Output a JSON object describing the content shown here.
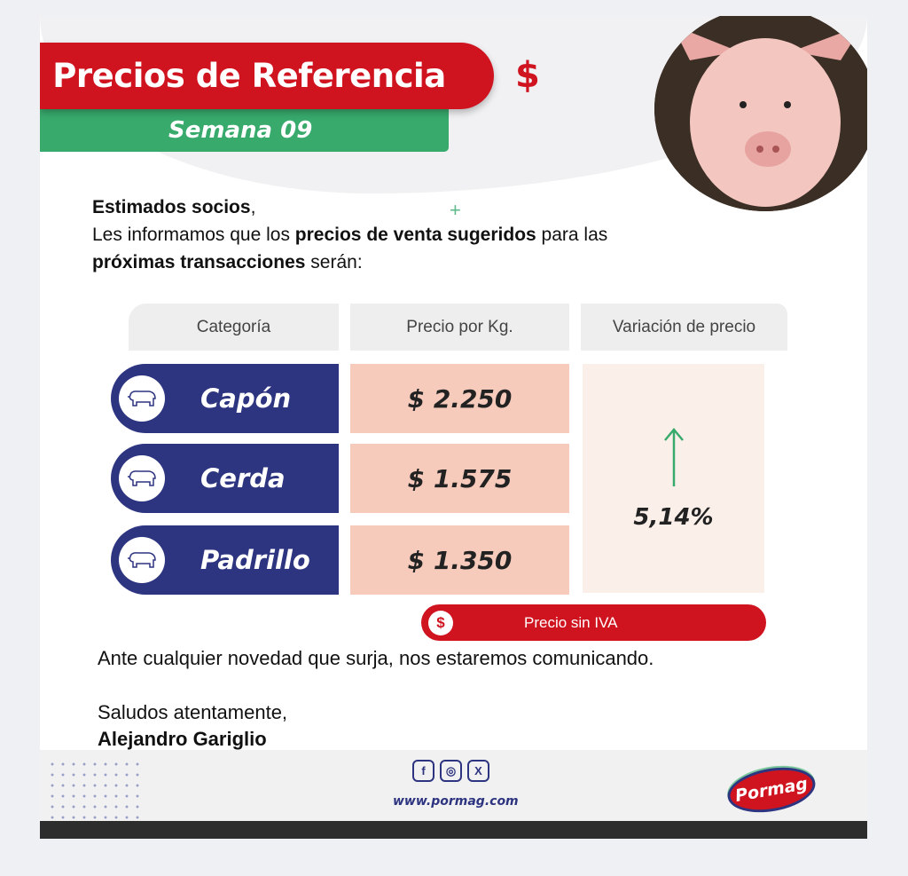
{
  "header": {
    "title": "Precios de Referencia",
    "week": "Semana  09",
    "currency_symbol": "$"
  },
  "intro": {
    "greeting": "Estimados socios",
    "greeting_punct": ",",
    "line2_a": "Les informamos que los ",
    "line2_bold": "precios de venta sugeridos",
    "line2_b": " para las",
    "line3_bold": "próximas transacciones",
    "line3_b": " serán:"
  },
  "table": {
    "headers": [
      "Categoría",
      "Precio por Kg.",
      "Variación de precio"
    ],
    "rows": [
      {
        "category": "Capón",
        "price": "$ 2.250"
      },
      {
        "category": "Cerda",
        "price": "$ 1.575"
      },
      {
        "category": "Padrillo",
        "price": "$ 1.350"
      }
    ],
    "variation": "5,14%",
    "variation_direction": "up"
  },
  "note": {
    "icon": "$",
    "label": "Precio sin IVA"
  },
  "closing": {
    "line": "Ante cualquier novedad que surja, nos estaremos comunicando.",
    "salutation": "Saludos atentamente,",
    "signature": "Alejandro Gariglio"
  },
  "footer": {
    "social": [
      "f",
      "◎",
      "X"
    ],
    "url": "www.pormag.com",
    "logo_text": "Pormag"
  },
  "colors": {
    "red": "#cf1420",
    "green": "#38aa6c",
    "navy": "#2d3480",
    "peach": "#f6cbbb"
  }
}
